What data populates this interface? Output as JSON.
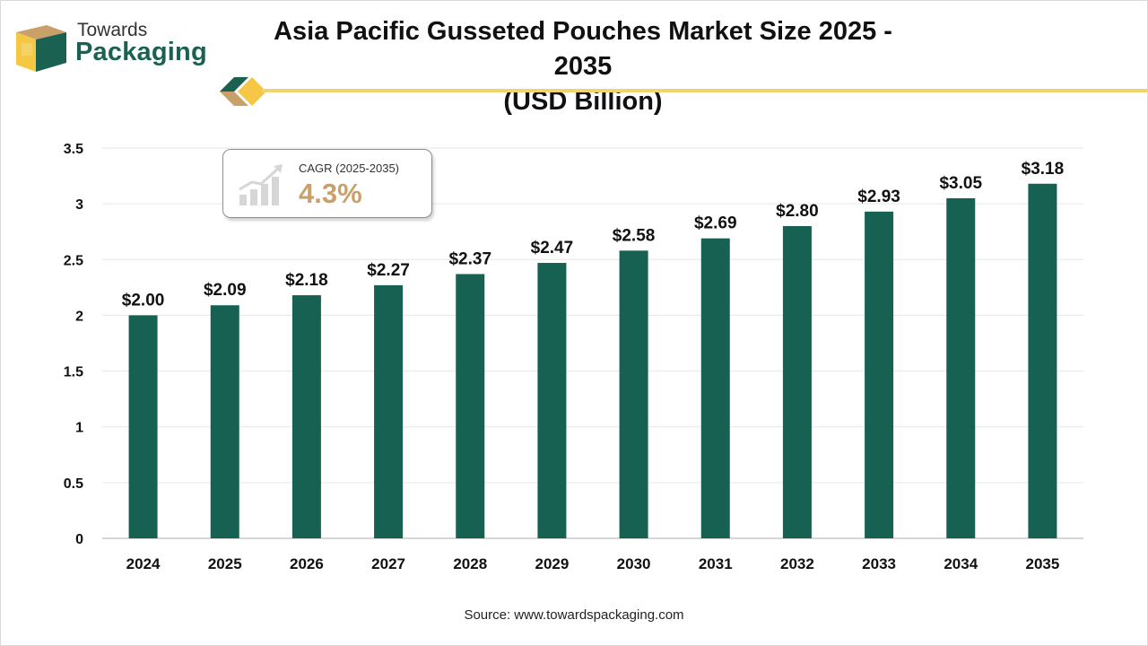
{
  "brand": {
    "line1": "Towards",
    "line2": "Packaging",
    "colors": {
      "green": "#1b6152",
      "gold": "#c9a06a",
      "yellow": "#f3d36b"
    }
  },
  "header": {
    "title_line1": "Asia Pacific Gusseted Pouches Market Size 2025 - 2035",
    "title_line2": "(USD Billion)"
  },
  "cagr": {
    "label": "CAGR (2025-2035)",
    "value": "4.3%",
    "icon": "growth-chart-icon"
  },
  "chart_data": {
    "type": "bar",
    "categories": [
      "2024",
      "2025",
      "2026",
      "2027",
      "2028",
      "2029",
      "2030",
      "2031",
      "2032",
      "2033",
      "2034",
      "2035"
    ],
    "values": [
      2.0,
      2.09,
      2.18,
      2.27,
      2.37,
      2.47,
      2.58,
      2.69,
      2.8,
      2.93,
      3.05,
      3.18
    ],
    "data_labels": [
      "$2.00",
      "$2.09",
      "$2.18",
      "$2.27",
      "$2.37",
      "$2.47",
      "$2.58",
      "$2.69",
      "$2.80",
      "$2.93",
      "$3.05",
      "$3.18"
    ],
    "yticks": [
      "0",
      "0.5",
      "1",
      "1.5",
      "2",
      "2.5",
      "3",
      "3.5"
    ],
    "ylim": [
      0,
      3.5
    ],
    "grid": true,
    "bar_color": "#176152"
  },
  "footer": {
    "source": "Source: www.towardspackaging.com"
  }
}
